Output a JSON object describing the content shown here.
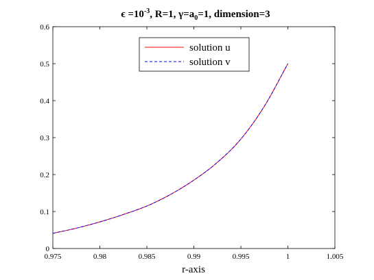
{
  "chart_data": {
    "type": "line",
    "title": {
      "prefix": "ϵ =10",
      "exponent": "-3",
      "mid": ", R=1, γ=a",
      "subscript": "0",
      "suffix": "=1, dimension=3"
    },
    "xlabel": "r-axis",
    "ylabel": "",
    "xlim": [
      0.975,
      1.005
    ],
    "ylim": [
      0,
      0.6
    ],
    "xticks": [
      "0.975",
      "0.98",
      "0.985",
      "0.99",
      "0.995",
      "1",
      "1.005"
    ],
    "yticks": [
      "0",
      "0.1",
      "0.2",
      "0.3",
      "0.4",
      "0.5",
      "0.6"
    ],
    "grid": false,
    "legend_position": "top-center",
    "series": [
      {
        "name": "solution u",
        "color": "#ff0000",
        "dash": "solid",
        "x": [
          0.975,
          0.9775,
          0.98,
          0.9825,
          0.985,
          0.9875,
          0.99,
          0.9925,
          0.995,
          0.9975,
          1.0
        ],
        "y": [
          0.041,
          0.055,
          0.072,
          0.092,
          0.115,
          0.146,
          0.185,
          0.233,
          0.296,
          0.385,
          0.5
        ]
      },
      {
        "name": "solution v",
        "color": "#0000ff",
        "dash": "dashed",
        "x": [
          0.975,
          0.9775,
          0.98,
          0.9825,
          0.985,
          0.9875,
          0.99,
          0.9925,
          0.995,
          0.9975,
          1.0
        ],
        "y": [
          0.041,
          0.055,
          0.072,
          0.092,
          0.115,
          0.146,
          0.185,
          0.233,
          0.296,
          0.385,
          0.5
        ]
      }
    ]
  }
}
